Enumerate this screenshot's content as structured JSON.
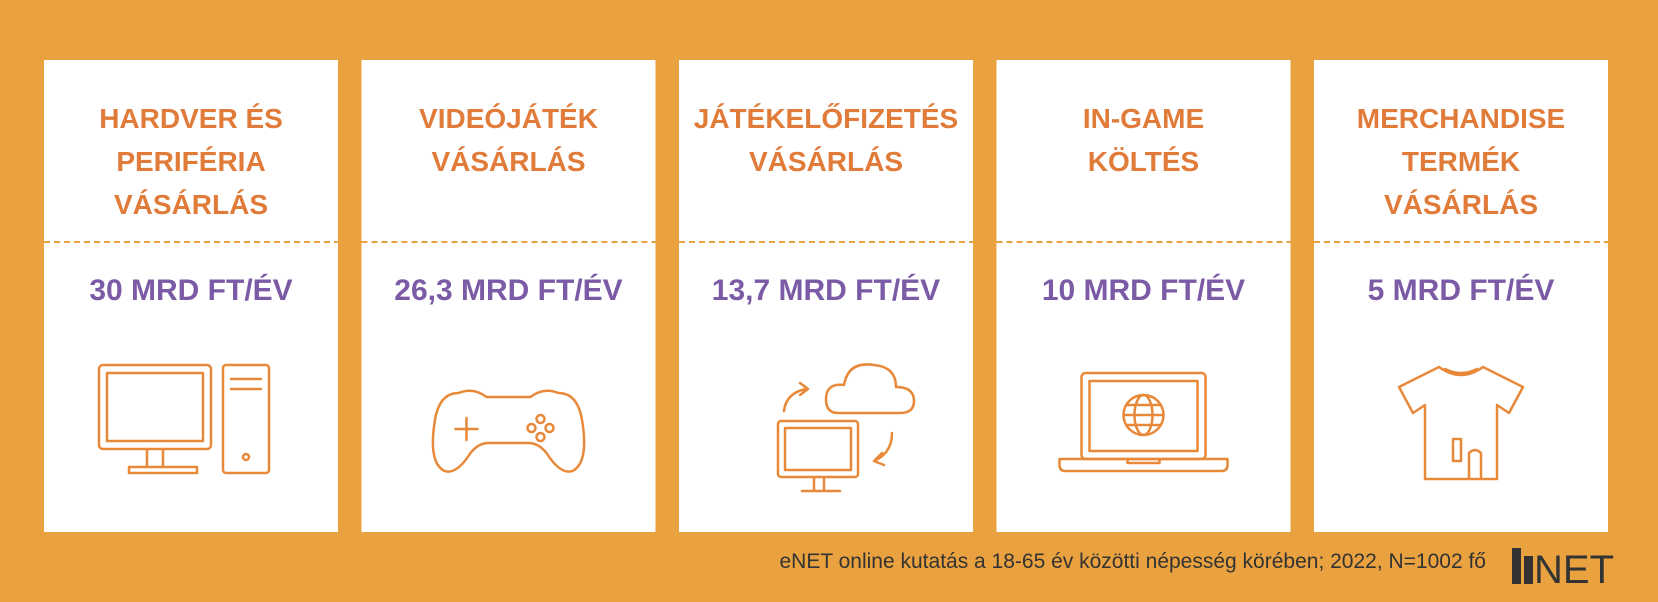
{
  "cards": [
    {
      "title": [
        "HARDVER ÉS",
        "PERIFÉRIA",
        "VÁSÁRLÁS"
      ],
      "amount": "30 MRD FT/ÉV"
    },
    {
      "title": [
        "VIDEÓJÁTÉK",
        "VÁSÁRLÁS"
      ],
      "amount": "26,3 MRD FT/ÉV"
    },
    {
      "title": [
        "JÁTÉKELŐFIZETÉS",
        "VÁSÁRLÁS"
      ],
      "amount": "13,7 MRD FT/ÉV"
    },
    {
      "title": [
        "IN-GAME",
        "KÖLTÉS"
      ],
      "amount": "10 MRD FT/ÉV"
    },
    {
      "title": [
        "MERCHANDISE",
        "TERMÉK",
        "VÁSÁRLÁS"
      ],
      "amount": "5 MRD FT/ÉV"
    }
  ],
  "footer": {
    "source": "eNET online kutatás a 18-65 év közötti népesség körében; 2022, N=1002 fő",
    "logo": "NET"
  }
}
